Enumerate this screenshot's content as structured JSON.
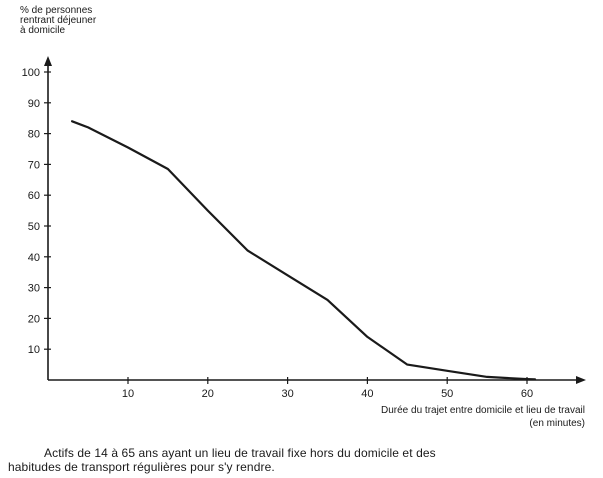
{
  "chart_data": {
    "type": "line",
    "ylabel_lines": [
      "% de personnes",
      "rentrant déjeuner",
      "à domicile"
    ],
    "xlabel": "Durée du trajet entre domicile et lieu de travail",
    "xlabel_unit": "(en minutes)",
    "x_ticks": [
      "10",
      "20",
      "30",
      "40",
      "50",
      "60"
    ],
    "y_ticks": [
      "10",
      "20",
      "30",
      "40",
      "50",
      "60",
      "70",
      "80",
      "90",
      "100"
    ],
    "xlim": [
      0,
      65
    ],
    "ylim": [
      0,
      100
    ],
    "grid": false,
    "series": [
      {
        "x": [
          3,
          5,
          10,
          15,
          20,
          25,
          30,
          35,
          40,
          45,
          50,
          55,
          60,
          61
        ],
        "y": [
          84,
          82,
          75.5,
          68.5,
          55,
          42,
          34,
          26,
          14,
          5,
          3,
          1,
          0.3,
          0.2
        ]
      }
    ],
    "line_color": "#1a1a1a"
  },
  "caption": {
    "line1": "Actifs de 14 à 65 ans ayant un lieu de travail fixe hors du domicile et des",
    "line2": "habitudes de transport régulières pour s'y rendre."
  }
}
